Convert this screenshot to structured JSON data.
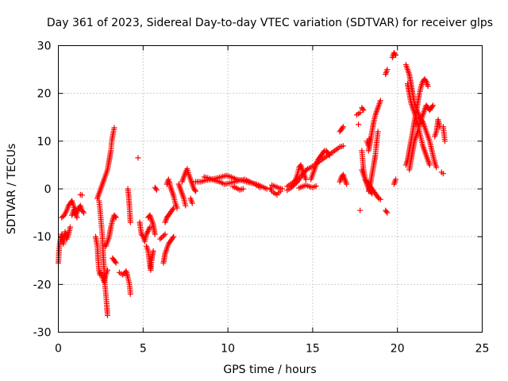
{
  "chart_data": {
    "type": "scatter",
    "title": "Day 361 of 2023, Sidereal Day-to-day VTEC variation (SDTVAR) for receiver glps",
    "xlabel": "GPS time / hours",
    "ylabel": "SDTVAR / TECUs",
    "xlim": [
      0,
      25
    ],
    "ylim": [
      -30,
      30
    ],
    "xticks": [
      0,
      5,
      10,
      15,
      20,
      25
    ],
    "yticks": [
      -30,
      -20,
      -10,
      0,
      10,
      20,
      30
    ],
    "grid": true,
    "marker": "plus",
    "color": "#ff0000",
    "segments": [
      [
        [
          0.0,
          -15.5
        ],
        [
          0.05,
          -12.5
        ],
        [
          0.1,
          -11
        ],
        [
          0.2,
          -9.5
        ],
        [
          0.3,
          -11.5
        ],
        [
          0.4,
          -9
        ],
        [
          0.5,
          -10.5
        ],
        [
          0.6,
          -9.5
        ],
        [
          0.7,
          -8
        ]
      ],
      [
        [
          0.2,
          -6
        ],
        [
          0.35,
          -5.5
        ],
        [
          0.5,
          -4.5
        ],
        [
          0.6,
          -3.5
        ],
        [
          0.7,
          -3
        ],
        [
          0.8,
          -2.5
        ],
        [
          0.9,
          -3.5
        ],
        [
          1.0,
          -5
        ],
        [
          1.1,
          -6
        ]
      ],
      [
        [
          0.8,
          -5.5
        ],
        [
          0.9,
          -4.5
        ],
        [
          1.0,
          -4.2
        ],
        [
          1.1,
          -5
        ],
        [
          1.2,
          -4
        ],
        [
          1.3,
          -3.5
        ],
        [
          1.4,
          -4.5
        ],
        [
          1.5,
          -5
        ]
      ],
      [
        [
          1.3,
          -1.2
        ],
        [
          1.4,
          -1.3
        ]
      ],
      [
        [
          2.2,
          -10
        ],
        [
          2.3,
          -12
        ],
        [
          2.35,
          -15
        ],
        [
          2.4,
          -17
        ],
        [
          2.45,
          -18
        ],
        [
          2.5,
          -17.5
        ],
        [
          2.6,
          -18.5
        ],
        [
          2.7,
          -19.5
        ],
        [
          2.8,
          -18
        ],
        [
          2.9,
          -17
        ]
      ],
      [
        [
          2.4,
          -2.5
        ],
        [
          2.45,
          -4
        ],
        [
          2.5,
          -6
        ],
        [
          2.55,
          -8
        ],
        [
          2.6,
          -10
        ],
        [
          2.65,
          -14
        ],
        [
          2.7,
          -17
        ],
        [
          2.75,
          -20
        ],
        [
          2.8,
          -22
        ],
        [
          2.85,
          -24
        ],
        [
          2.9,
          -26.5
        ]
      ],
      [
        [
          2.3,
          -2
        ],
        [
          2.4,
          -1
        ],
        [
          2.5,
          0
        ],
        [
          2.6,
          1
        ],
        [
          2.7,
          2
        ],
        [
          2.8,
          3
        ],
        [
          2.9,
          4
        ],
        [
          3.0,
          6
        ],
        [
          3.1,
          8
        ],
        [
          3.15,
          10
        ],
        [
          3.2,
          11
        ],
        [
          3.25,
          12
        ],
        [
          3.3,
          12.8
        ]
      ],
      [
        [
          2.8,
          -12
        ],
        [
          2.9,
          -11
        ],
        [
          3.0,
          -10
        ],
        [
          3.1,
          -8
        ],
        [
          3.2,
          -6.5
        ],
        [
          3.3,
          -5.5
        ],
        [
          3.4,
          -6
        ]
      ],
      [
        [
          3.2,
          -14.5
        ],
        [
          3.3,
          -15
        ],
        [
          3.4,
          -15.5
        ]
      ],
      [
        [
          3.6,
          -17.5
        ],
        [
          3.8,
          -18
        ],
        [
          4.0,
          -17.2
        ],
        [
          4.1,
          -18.5
        ],
        [
          4.2,
          -20
        ],
        [
          4.25,
          -22
        ]
      ],
      [
        [
          4.1,
          0
        ],
        [
          4.15,
          -1.5
        ],
        [
          4.2,
          -4
        ],
        [
          4.25,
          -7
        ]
      ],
      [
        [
          4.7,
          6.5
        ]
      ],
      [
        [
          4.8,
          -7
        ],
        [
          4.9,
          -9.5
        ],
        [
          5.0,
          -10
        ],
        [
          5.1,
          -11
        ],
        [
          5.2,
          -9.5
        ],
        [
          5.4,
          -8
        ]
      ],
      [
        [
          5.2,
          -12
        ],
        [
          5.3,
          -13
        ],
        [
          5.35,
          -14.5
        ],
        [
          5.4,
          -16
        ],
        [
          5.45,
          -17
        ],
        [
          5.5,
          -15
        ],
        [
          5.6,
          -13
        ]
      ],
      [
        [
          5.3,
          -6
        ],
        [
          5.4,
          -5.5
        ],
        [
          5.5,
          -6.5
        ],
        [
          5.6,
          -7.5
        ],
        [
          5.7,
          -9.5
        ]
      ],
      [
        [
          5.7,
          0.3
        ],
        [
          5.8,
          -0.2
        ]
      ],
      [
        [
          6.0,
          -10.5
        ],
        [
          6.3,
          -9.5
        ]
      ],
      [
        [
          6.2,
          -15.5
        ],
        [
          6.3,
          -13.5
        ],
        [
          6.4,
          -12.5
        ],
        [
          6.5,
          -11.5
        ],
        [
          6.6,
          -11
        ],
        [
          6.7,
          -10.5
        ],
        [
          6.8,
          -10
        ]
      ],
      [
        [
          6.3,
          -7
        ],
        [
          6.4,
          -6
        ],
        [
          6.5,
          -5.5
        ],
        [
          6.6,
          -5
        ],
        [
          6.7,
          -4.5
        ],
        [
          6.8,
          -4
        ]
      ],
      [
        [
          6.4,
          1
        ],
        [
          6.5,
          2
        ],
        [
          6.55,
          1.5
        ],
        [
          6.6,
          0.5
        ],
        [
          6.7,
          -0.5
        ],
        [
          6.8,
          -1.5
        ],
        [
          6.9,
          -3
        ],
        [
          7.0,
          -4
        ]
      ],
      [
        [
          7.1,
          1
        ],
        [
          7.2,
          0
        ],
        [
          7.3,
          -1
        ],
        [
          7.4,
          -2
        ],
        [
          7.5,
          -3.5
        ]
      ],
      [
        [
          7.3,
          1.5
        ],
        [
          7.4,
          2.5
        ],
        [
          7.5,
          3.5
        ],
        [
          7.6,
          4.2
        ],
        [
          7.7,
          3
        ],
        [
          7.8,
          2
        ],
        [
          7.9,
          1
        ],
        [
          8.0,
          0
        ],
        [
          8.1,
          -0.5
        ]
      ],
      [
        [
          7.8,
          -2
        ],
        [
          7.9,
          -3
        ]
      ],
      [
        [
          8.1,
          1.5
        ],
        [
          8.4,
          1.5
        ],
        [
          8.7,
          1.8
        ],
        [
          9.0,
          2
        ],
        [
          9.3,
          2.2
        ],
        [
          9.6,
          2.5
        ],
        [
          9.9,
          2.8
        ],
        [
          10.2,
          2.5
        ],
        [
          10.5,
          2
        ],
        [
          10.8,
          1.8
        ],
        [
          11.1,
          1.5
        ],
        [
          11.4,
          1.2
        ],
        [
          11.7,
          1
        ],
        [
          12.0,
          0.5
        ],
        [
          12.3,
          0
        ]
      ],
      [
        [
          8.6,
          2.5
        ],
        [
          8.9,
          2.2
        ],
        [
          9.2,
          1.8
        ],
        [
          9.5,
          1.5
        ],
        [
          9.8,
          1
        ],
        [
          10.1,
          1.2
        ],
        [
          10.4,
          1.5
        ],
        [
          10.7,
          1.8
        ],
        [
          11.0,
          2
        ],
        [
          11.3,
          1.5
        ],
        [
          11.6,
          1
        ],
        [
          11.9,
          0.3
        ]
      ],
      [
        [
          10.3,
          0.5
        ],
        [
          10.5,
          0.2
        ],
        [
          10.7,
          -0.2
        ],
        [
          10.9,
          0
        ]
      ],
      [
        [
          12.5,
          0.2
        ],
        [
          12.6,
          -0.5
        ],
        [
          12.7,
          -0.8
        ],
        [
          12.8,
          -1
        ],
        [
          12.9,
          -1.2
        ],
        [
          13.0,
          -0.8
        ],
        [
          13.1,
          -0.5
        ]
      ],
      [
        [
          12.6,
          0.8
        ],
        [
          12.8,
          0.5
        ],
        [
          13.0,
          0.2
        ],
        [
          13.2,
          0
        ]
      ],
      [
        [
          13.5,
          0.5
        ],
        [
          13.7,
          1
        ],
        [
          13.9,
          1.5
        ],
        [
          14.0,
          2
        ],
        [
          14.1,
          3
        ],
        [
          14.2,
          4.5
        ],
        [
          14.3,
          5
        ],
        [
          14.4,
          4
        ],
        [
          14.5,
          3
        ],
        [
          14.6,
          2
        ]
      ],
      [
        [
          13.5,
          -0.3
        ],
        [
          13.7,
          0.2
        ],
        [
          13.9,
          0.8
        ],
        [
          14.1,
          1.5
        ],
        [
          14.3,
          2.5
        ],
        [
          14.5,
          3.5
        ],
        [
          14.7,
          4.2
        ],
        [
          14.9,
          4.5
        ],
        [
          15.1,
          5
        ],
        [
          15.3,
          5.5
        ],
        [
          15.5,
          6
        ],
        [
          15.7,
          6.5
        ],
        [
          15.9,
          7
        ],
        [
          16.1,
          7.5
        ],
        [
          16.3,
          8
        ],
        [
          16.5,
          8.5
        ]
      ],
      [
        [
          14.9,
          2
        ],
        [
          15.0,
          3
        ],
        [
          15.1,
          4
        ],
        [
          15.2,
          5
        ],
        [
          15.3,
          6
        ],
        [
          15.4,
          6.5
        ],
        [
          15.5,
          7
        ],
        [
          15.6,
          7.5
        ],
        [
          15.7,
          8
        ],
        [
          15.8,
          8
        ],
        [
          15.9,
          7.5
        ],
        [
          16.0,
          7
        ]
      ],
      [
        [
          14.2,
          0.2
        ],
        [
          14.4,
          0.5
        ],
        [
          14.6,
          0.8
        ],
        [
          14.8,
          0.5
        ],
        [
          15.0,
          0.3
        ],
        [
          15.2,
          0.6
        ]
      ],
      [
        [
          16.6,
          1.5
        ],
        [
          16.7,
          2.5
        ],
        [
          16.8,
          3
        ],
        [
          16.9,
          2
        ],
        [
          17.0,
          1
        ]
      ],
      [
        [
          16.6,
          12
        ],
        [
          16.7,
          12.5
        ],
        [
          16.8,
          13
        ]
      ],
      [
        [
          16.6,
          8.8
        ],
        [
          16.8,
          9
        ]
      ],
      [
        [
          17.6,
          15.5
        ],
        [
          17.8,
          16
        ]
      ],
      [
        [
          17.7,
          13.5
        ]
      ],
      [
        [
          17.8,
          -4.5
        ]
      ],
      [
        [
          17.9,
          17
        ],
        [
          18.0,
          16.5
        ]
      ],
      [
        [
          17.9,
          8
        ],
        [
          17.95,
          6
        ],
        [
          18.0,
          4
        ],
        [
          18.05,
          3
        ],
        [
          18.1,
          2
        ],
        [
          18.2,
          1
        ],
        [
          18.3,
          0
        ],
        [
          18.4,
          -0.5
        ],
        [
          18.5,
          -1
        ]
      ],
      [
        [
          17.9,
          4
        ],
        [
          18.0,
          3
        ],
        [
          18.1,
          2
        ],
        [
          18.2,
          1.5
        ],
        [
          18.3,
          1
        ],
        [
          18.4,
          0.5
        ],
        [
          18.5,
          0
        ],
        [
          18.6,
          -0.5
        ],
        [
          18.7,
          -1
        ],
        [
          18.8,
          -1.5
        ],
        [
          18.9,
          -2
        ],
        [
          19.0,
          -2.2
        ]
      ],
      [
        [
          18.3,
          8
        ],
        [
          18.4,
          10
        ],
        [
          18.5,
          12
        ],
        [
          18.6,
          14
        ],
        [
          18.7,
          15.5
        ],
        [
          18.8,
          16.5
        ],
        [
          18.9,
          17.5
        ],
        [
          19.0,
          18.5
        ]
      ],
      [
        [
          18.2,
          10
        ],
        [
          18.3,
          9
        ],
        [
          18.35,
          10.5
        ]
      ],
      [
        [
          18.3,
          -0.5
        ],
        [
          18.4,
          1
        ],
        [
          18.5,
          3
        ],
        [
          18.6,
          5
        ],
        [
          18.7,
          7
        ],
        [
          18.75,
          9
        ],
        [
          18.8,
          10.5
        ],
        [
          18.85,
          12
        ]
      ],
      [
        [
          19.3,
          24
        ],
        [
          19.4,
          25
        ]
      ],
      [
        [
          19.3,
          -4.5
        ],
        [
          19.4,
          -5
        ]
      ],
      [
        [
          19.7,
          27.5
        ],
        [
          19.8,
          28.5
        ],
        [
          19.9,
          28
        ]
      ],
      [
        [
          19.8,
          1
        ],
        [
          19.9,
          2
        ]
      ],
      [
        [
          20.5,
          5
        ],
        [
          20.6,
          6
        ],
        [
          20.7,
          8
        ],
        [
          20.8,
          10
        ],
        [
          20.9,
          12
        ],
        [
          21.0,
          14
        ],
        [
          21.1,
          16
        ],
        [
          21.2,
          18
        ],
        [
          21.3,
          20
        ],
        [
          21.4,
          21.5
        ],
        [
          21.5,
          22.5
        ],
        [
          21.6,
          23
        ],
        [
          21.7,
          22.5
        ],
        [
          21.8,
          21.5
        ]
      ],
      [
        [
          20.5,
          26
        ],
        [
          20.6,
          25
        ],
        [
          20.7,
          24
        ],
        [
          20.8,
          22
        ],
        [
          20.9,
          20
        ],
        [
          21.0,
          18
        ],
        [
          21.1,
          17
        ],
        [
          21.2,
          16
        ],
        [
          21.3,
          15
        ],
        [
          21.4,
          14.5
        ],
        [
          21.5,
          14
        ],
        [
          21.6,
          13
        ],
        [
          21.7,
          12
        ],
        [
          21.8,
          11
        ],
        [
          21.9,
          10
        ],
        [
          22.0,
          8.5
        ],
        [
          22.1,
          7
        ],
        [
          22.2,
          5.5
        ],
        [
          22.3,
          4.5
        ]
      ],
      [
        [
          20.6,
          22
        ],
        [
          20.7,
          20
        ],
        [
          20.8,
          18
        ],
        [
          20.9,
          17
        ],
        [
          21.0,
          16
        ],
        [
          21.1,
          15
        ],
        [
          21.2,
          13.5
        ],
        [
          21.3,
          12
        ],
        [
          21.4,
          10.5
        ],
        [
          21.5,
          9
        ],
        [
          21.6,
          8
        ],
        [
          21.7,
          7
        ],
        [
          21.8,
          6
        ],
        [
          21.9,
          5
        ]
      ],
      [
        [
          20.7,
          4
        ],
        [
          20.8,
          6
        ],
        [
          20.9,
          8
        ],
        [
          21.0,
          10
        ],
        [
          21.1,
          11
        ],
        [
          21.2,
          12
        ],
        [
          21.3,
          13.5
        ],
        [
          21.4,
          14.5
        ],
        [
          21.5,
          15.5
        ],
        [
          21.6,
          16.5
        ],
        [
          21.7,
          17.5
        ],
        [
          21.8,
          17
        ],
        [
          21.9,
          16.5
        ],
        [
          22.0,
          17
        ],
        [
          22.1,
          17.5
        ]
      ],
      [
        [
          22.2,
          11
        ],
        [
          22.3,
          12
        ],
        [
          22.4,
          14.5
        ],
        [
          22.5,
          13
        ]
      ],
      [
        [
          22.7,
          13
        ],
        [
          22.75,
          11.5
        ],
        [
          22.8,
          10
        ]
      ],
      [
        [
          22.6,
          3.5
        ],
        [
          22.7,
          3.2
        ]
      ]
    ]
  }
}
